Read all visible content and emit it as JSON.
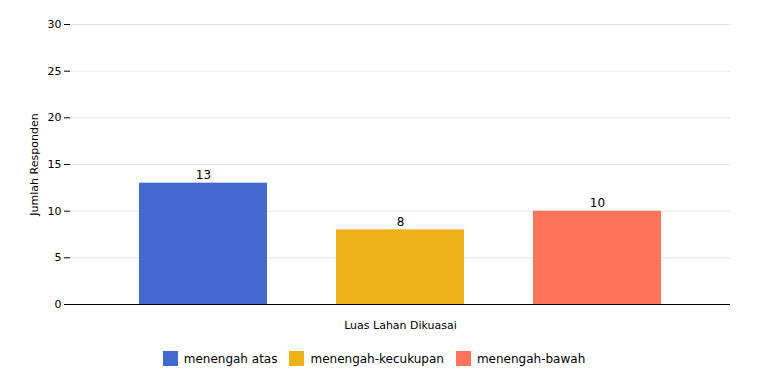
{
  "chart_data": {
    "type": "bar",
    "categories": [
      "menengah atas",
      "menengah-kecukupan",
      "menengah-bawah"
    ],
    "values": [
      13,
      8,
      10
    ],
    "xlabel": "Luas Lahan Dikuasai",
    "ylabel": "Jumlah Responden",
    "ylim": [
      0,
      30
    ],
    "yticks": [
      0,
      5,
      10,
      15,
      20,
      25,
      30
    ],
    "grid": true,
    "legend": "bottom",
    "data_labels": true,
    "tick_labels": "y"
  }
}
